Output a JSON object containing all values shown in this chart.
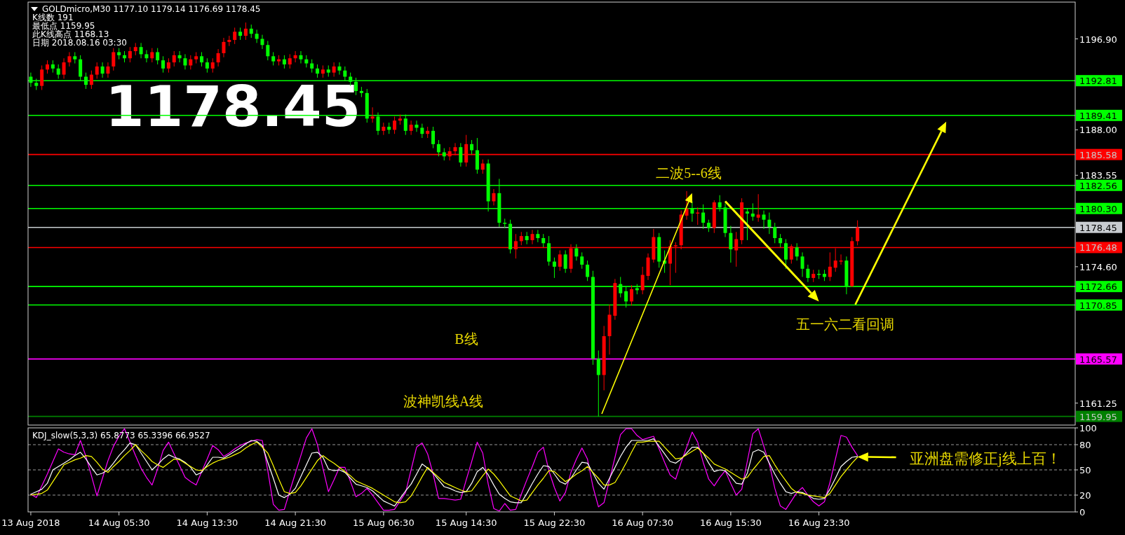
{
  "chart_data": [
    {
      "type": "candlestick",
      "title": "GOLDmicro,M30 1177.10 1179.14 1176.69 1178.45",
      "tick_labels": "y",
      "ylim": [
        1159.1,
        1200.5
      ],
      "yticks": [
        {
          "value": 1196.9,
          "label": "1196.90"
        },
        {
          "value": 1188,
          "label": "1188.00"
        },
        {
          "value": 1183.55,
          "label": "1183.55"
        },
        {
          "value": 1174.6,
          "label": "1174.60"
        },
        {
          "value": 1161.25,
          "label": "1161.25"
        }
      ],
      "ref_lines": [
        {
          "axis": "y",
          "value": 1192.81,
          "label": "1192.81",
          "color": "#00ff00"
        },
        {
          "axis": "y",
          "value": 1189.41,
          "label": "1189.41",
          "color": "#00ff00"
        },
        {
          "axis": "y",
          "value": 1185.58,
          "label": "1185.58",
          "color": "#ff0000"
        },
        {
          "axis": "y",
          "value": 1182.56,
          "label": "1182.56",
          "color": "#00ff00"
        },
        {
          "axis": "y",
          "value": 1180.3,
          "label": "1180.30",
          "color": "#00ff00"
        },
        {
          "axis": "y",
          "value": 1178.45,
          "label": "1178.45",
          "color": "#c8ccd0"
        },
        {
          "axis": "y",
          "value": 1176.48,
          "label": "1176.48",
          "color": "#ff0000"
        },
        {
          "axis": "y",
          "value": 1172.66,
          "label": "1172.66",
          "color": "#00ff00"
        },
        {
          "axis": "y",
          "value": 1170.85,
          "label": "1170.85",
          "color": "#00ff00"
        },
        {
          "axis": "y",
          "value": 1165.57,
          "label": "1165.57",
          "color": "#ff00ff"
        },
        {
          "axis": "y",
          "value": 1159.95,
          "label": "1159.95",
          "color": "#008000"
        }
      ],
      "annotations": [
        "K线数 191",
        "最低点 1159.95",
        "此K线高点 1168.13",
        "日期 2018.08.16 03:30",
        "1178.45",
        "二波5--6线",
        "B线",
        "波神凯线A线",
        "五一六二看回调"
      ],
      "categories": [
        null,
        null,
        null,
        null,
        null,
        null,
        null,
        null,
        null,
        null,
        null,
        null,
        null,
        null,
        null,
        null,
        null,
        null,
        null,
        null,
        null,
        null,
        null,
        null,
        null,
        null,
        null,
        null,
        null,
        null,
        null,
        null,
        null,
        null,
        null,
        null,
        null,
        null,
        null,
        null,
        null,
        null,
        null,
        null,
        null,
        null,
        null,
        null,
        null,
        null,
        null,
        null,
        null,
        null,
        null,
        null,
        null,
        null,
        null,
        null,
        null,
        null,
        null,
        null,
        null,
        null,
        null,
        null,
        null,
        null,
        null,
        null,
        null,
        null,
        null,
        null,
        null,
        null,
        null,
        null,
        null,
        null,
        null,
        null,
        null,
        null,
        null,
        null,
        null,
        null,
        null,
        null,
        null,
        null,
        null,
        null,
        null,
        null,
        null,
        null,
        null,
        null,
        null,
        null,
        null,
        null,
        null,
        null,
        null,
        null,
        null,
        null,
        null,
        null,
        null,
        null,
        null,
        null,
        null,
        null,
        null,
        null,
        null,
        null,
        null,
        null,
        null,
        null,
        null,
        null,
        null,
        null,
        null,
        null,
        null,
        null,
        null,
        null,
        null,
        null,
        null,
        null,
        null,
        null,
        null,
        null,
        null,
        null,
        null,
        null,
        null,
        null,
        null,
        null,
        null,
        null,
        null,
        null,
        null,
        null,
        null,
        null,
        null,
        null,
        null,
        null,
        null,
        null,
        null,
        null,
        null,
        null,
        null,
        null,
        null,
        null,
        null,
        null,
        null,
        null,
        null,
        null,
        null,
        null,
        null,
        null,
        null,
        null,
        null,
        null
      ],
      "ohlc": [
        [
          1193.2,
          1193.6,
          1192.2,
          1192.6
        ],
        [
          1192.6,
          1193.0,
          1191.9,
          1192.3
        ],
        [
          1192.3,
          1194.3,
          1191.9,
          1193.9
        ],
        [
          1193.9,
          1194.8,
          1193.5,
          1194.4
        ],
        [
          1194.4,
          1194.8,
          1193.6,
          1194.0
        ],
        [
          1194.0,
          1194.4,
          1193.0,
          1193.4
        ],
        [
          1193.4,
          1195.0,
          1193.0,
          1194.6
        ],
        [
          1194.6,
          1195.6,
          1194.2,
          1195.2
        ],
        [
          1195.2,
          1195.6,
          1194.5,
          1194.9
        ],
        [
          1194.9,
          1195.3,
          1192.8,
          1193.2
        ],
        [
          1193.2,
          1193.6,
          1192.0,
          1192.4
        ],
        [
          1192.4,
          1193.8,
          1192.0,
          1193.4
        ],
        [
          1193.4,
          1194.6,
          1193.0,
          1194.2
        ],
        [
          1194.2,
          1194.6,
          1193.1,
          1193.5
        ],
        [
          1193.5,
          1194.6,
          1193.1,
          1194.2
        ],
        [
          1194.2,
          1196.0,
          1193.8,
          1195.6
        ],
        [
          1195.6,
          1196.0,
          1194.9,
          1195.3
        ],
        [
          1195.3,
          1195.7,
          1194.6,
          1195.0
        ],
        [
          1195.0,
          1196.1,
          1194.6,
          1195.7
        ],
        [
          1195.7,
          1196.5,
          1195.3,
          1196.1
        ],
        [
          1196.1,
          1196.5,
          1195.0,
          1195.4
        ],
        [
          1195.4,
          1195.8,
          1194.6,
          1195.0
        ],
        [
          1195.0,
          1196.0,
          1194.6,
          1195.6
        ],
        [
          1195.6,
          1196.0,
          1194.4,
          1194.8
        ],
        [
          1194.8,
          1195.2,
          1193.6,
          1194.0
        ],
        [
          1194.0,
          1195.0,
          1193.6,
          1194.6
        ],
        [
          1194.6,
          1195.7,
          1194.2,
          1195.3
        ],
        [
          1195.3,
          1195.7,
          1194.6,
          1195.0
        ],
        [
          1195.0,
          1195.4,
          1193.9,
          1194.3
        ],
        [
          1194.3,
          1195.3,
          1193.9,
          1194.9
        ],
        [
          1194.9,
          1195.6,
          1194.5,
          1195.2
        ],
        [
          1195.2,
          1195.6,
          1194.2,
          1194.6
        ],
        [
          1194.6,
          1195.0,
          1193.6,
          1194.0
        ],
        [
          1194.0,
          1195.0,
          1193.6,
          1194.6
        ],
        [
          1194.6,
          1195.9,
          1194.2,
          1195.5
        ],
        [
          1195.5,
          1197.0,
          1195.1,
          1196.6
        ],
        [
          1196.6,
          1197.2,
          1196.2,
          1196.8
        ],
        [
          1196.8,
          1198.0,
          1196.4,
          1197.6
        ],
        [
          1197.6,
          1198.0,
          1196.8,
          1197.2
        ],
        [
          1197.2,
          1198.5,
          1196.8,
          1197.9
        ],
        [
          1197.9,
          1198.3,
          1197.0,
          1197.4
        ],
        [
          1197.4,
          1197.8,
          1196.5,
          1196.9
        ],
        [
          1196.9,
          1197.3,
          1195.9,
          1196.3
        ],
        [
          1196.3,
          1196.7,
          1194.8,
          1195.2
        ],
        [
          1195.2,
          1195.6,
          1194.3,
          1194.7
        ],
        [
          1194.7,
          1195.3,
          1194.3,
          1194.9
        ],
        [
          1194.9,
          1195.3,
          1194.0,
          1194.4
        ],
        [
          1194.4,
          1195.4,
          1194.0,
          1195.0
        ],
        [
          1195.0,
          1195.7,
          1194.6,
          1195.3
        ],
        [
          1195.3,
          1195.7,
          1194.5,
          1194.9
        ],
        [
          1194.9,
          1195.3,
          1194.1,
          1194.5
        ],
        [
          1194.5,
          1194.9,
          1193.6,
          1194.0
        ],
        [
          1194.0,
          1194.4,
          1193.1,
          1193.5
        ],
        [
          1193.5,
          1194.3,
          1193.1,
          1193.9
        ],
        [
          1193.9,
          1194.3,
          1193.2,
          1193.6
        ],
        [
          1193.6,
          1194.6,
          1193.2,
          1194.2
        ],
        [
          1194.2,
          1194.6,
          1193.4,
          1193.8
        ],
        [
          1193.8,
          1194.2,
          1192.8,
          1193.2
        ],
        [
          1193.2,
          1193.6,
          1192.3,
          1192.7
        ],
        [
          1192.7,
          1193.1,
          1191.4,
          1191.8
        ],
        [
          1191.8,
          1192.2,
          1191.2,
          1191.6
        ],
        [
          1191.6,
          1192.0,
          1188.7,
          1189.1
        ],
        [
          1189.1,
          1190.2,
          1188.7,
          1189.3
        ],
        [
          1189.3,
          1189.7,
          1187.5,
          1187.9
        ],
        [
          1187.9,
          1188.7,
          1187.5,
          1188.3
        ],
        [
          1188.3,
          1188.7,
          1187.6,
          1188.0
        ],
        [
          1188.0,
          1189.3,
          1187.6,
          1188.9
        ],
        [
          1188.9,
          1189.5,
          1188.5,
          1189.1
        ],
        [
          1189.1,
          1189.5,
          1187.5,
          1187.9
        ],
        [
          1187.9,
          1188.9,
          1187.5,
          1188.5
        ],
        [
          1188.5,
          1188.9,
          1187.8,
          1188.2
        ],
        [
          1188.2,
          1188.6,
          1187.2,
          1187.6
        ],
        [
          1187.6,
          1188.3,
          1187.2,
          1187.9
        ],
        [
          1187.9,
          1188.3,
          1186.2,
          1186.6
        ],
        [
          1186.6,
          1187.0,
          1185.4,
          1185.8
        ],
        [
          1185.8,
          1186.2,
          1185.0,
          1185.4
        ],
        [
          1185.4,
          1186.3,
          1185.0,
          1185.9
        ],
        [
          1185.9,
          1186.7,
          1185.5,
          1186.3
        ],
        [
          1186.3,
          1186.7,
          1184.4,
          1184.8
        ],
        [
          1184.8,
          1187.5,
          1184.4,
          1186.6
        ],
        [
          1186.6,
          1187.0,
          1185.6,
          1186.0
        ],
        [
          1186.0,
          1187.2,
          1183.7,
          1184.1
        ],
        [
          1184.1,
          1185.1,
          1183.7,
          1184.7
        ],
        [
          1184.7,
          1185.1,
          1180.0,
          1181.0
        ],
        [
          1181.0,
          1182.2,
          1180.6,
          1181.8
        ],
        [
          1181.8,
          1183.2,
          1178.5,
          1178.9
        ],
        [
          1178.9,
          1179.3,
          1178.4,
          1178.8
        ],
        [
          1178.8,
          1179.2,
          1175.9,
          1176.3
        ],
        [
          1176.3,
          1177.8,
          1175.4,
          1177.1
        ],
        [
          1177.1,
          1178.0,
          1176.7,
          1177.6
        ],
        [
          1177.6,
          1178.0,
          1176.8,
          1177.2
        ],
        [
          1177.2,
          1178.2,
          1176.8,
          1177.8
        ],
        [
          1177.8,
          1178.2,
          1177.0,
          1177.4
        ],
        [
          1177.4,
          1177.8,
          1176.5,
          1176.9
        ],
        [
          1176.9,
          1177.6,
          1174.7,
          1175.1
        ],
        [
          1175.1,
          1175.5,
          1173.5,
          1174.6
        ],
        [
          1174.6,
          1176.2,
          1174.2,
          1175.8
        ],
        [
          1175.8,
          1176.2,
          1174.0,
          1174.4
        ],
        [
          1174.4,
          1176.8,
          1174.0,
          1176.4
        ],
        [
          1176.4,
          1176.8,
          1175.2,
          1175.6
        ],
        [
          1175.6,
          1176.0,
          1174.4,
          1174.8
        ],
        [
          1174.8,
          1175.2,
          1173.2,
          1173.6
        ],
        [
          1173.6,
          1174.2,
          1165.0,
          1165.6
        ],
        [
          1165.6,
          1166.4,
          1159.95,
          1164.0
        ],
        [
          1164.0,
          1168.8,
          1162.5,
          1167.8
        ],
        [
          1167.8,
          1170.9,
          1166.0,
          1169.9
        ],
        [
          1169.8,
          1173.4,
          1169.4,
          1173.0
        ],
        [
          1172.9,
          1173.6,
          1171.6,
          1172.0
        ],
        [
          1172.2,
          1172.6,
          1170.6,
          1171.2
        ],
        [
          1171.2,
          1172.8,
          1170.8,
          1172.4
        ],
        [
          1172.5,
          1172.9,
          1171.9,
          1172.3
        ],
        [
          1172.3,
          1174.6,
          1171.9,
          1173.8
        ],
        [
          1173.7,
          1175.9,
          1173.3,
          1175.5
        ],
        [
          1175.3,
          1178.3,
          1175.0,
          1177.5
        ],
        [
          1177.5,
          1177.9,
          1174.5,
          1175.1
        ],
        [
          1175.2,
          1176.2,
          1174.0,
          1174.9
        ],
        [
          1174.9,
          1177.2,
          1172.8,
          1176.6
        ],
        [
          1176.6,
          1177.0,
          1174.0,
          1176.7
        ],
        [
          1176.7,
          1180.1,
          1176.3,
          1179.7
        ],
        [
          1179.6,
          1182.0,
          1179.2,
          1180.3
        ],
        [
          1180.3,
          1181.0,
          1179.0,
          1179.8
        ],
        [
          1179.8,
          1180.4,
          1178.7,
          1179.9
        ],
        [
          1179.9,
          1180.7,
          1178.3,
          1178.9
        ],
        [
          1178.9,
          1179.2,
          1178.0,
          1178.4
        ],
        [
          1178.4,
          1181.1,
          1177.9,
          1180.9
        ],
        [
          1180.9,
          1181.6,
          1180.0,
          1180.4
        ],
        [
          1180.4,
          1180.8,
          1177.5,
          1177.9
        ],
        [
          1177.9,
          1178.6,
          1175.0,
          1176.3
        ],
        [
          1176.2,
          1178.0,
          1174.6,
          1177.3
        ],
        [
          1177.2,
          1181.3,
          1176.8,
          1180.9
        ],
        [
          1180.0,
          1180.3,
          1177.2,
          1179.8
        ],
        [
          1179.8,
          1180.8,
          1179.1,
          1179.5
        ],
        [
          1179.4,
          1181.7,
          1179.0,
          1179.7
        ],
        [
          1179.7,
          1180.1,
          1178.3,
          1179.2
        ],
        [
          1179.2,
          1179.9,
          1177.8,
          1178.5
        ],
        [
          1178.5,
          1178.9,
          1176.9,
          1177.4
        ],
        [
          1177.4,
          1177.8,
          1176.5,
          1176.9
        ],
        [
          1176.9,
          1177.3,
          1174.4,
          1175.3
        ],
        [
          1175.3,
          1176.8,
          1174.9,
          1176.6
        ],
        [
          1176.5,
          1176.9,
          1175.2,
          1175.6
        ],
        [
          1175.6,
          1176.0,
          1173.6,
          1174.4
        ],
        [
          1174.4,
          1174.8,
          1173.1,
          1173.5
        ],
        [
          1173.5,
          1174.3,
          1173.1,
          1173.9
        ],
        [
          1173.9,
          1174.3,
          1173.4,
          1173.8
        ],
        [
          1173.9,
          1174.3,
          1173.2,
          1173.6
        ],
        [
          1173.6,
          1176.0,
          1173.2,
          1174.6
        ],
        [
          1174.5,
          1176.4,
          1174.1,
          1175.2
        ],
        [
          1175.1,
          1175.8,
          1174.8,
          1175.2
        ],
        [
          1175.2,
          1175.6,
          1171.9,
          1172.7
        ],
        [
          1172.7,
          1177.5,
          1172.6,
          1177.1
        ],
        [
          1177.1,
          1179.14,
          1176.69,
          1178.45
        ],
        null,
        null,
        null,
        null,
        null,
        null,
        null,
        null,
        null,
        null,
        null,
        null,
        null,
        null,
        null,
        null,
        null,
        null,
        null,
        null,
        null,
        null,
        null,
        null,
        null,
        null,
        null,
        null,
        null,
        null,
        null,
        null,
        null,
        null,
        null,
        null,
        null,
        null,
        null
      ],
      "colors": [
        "#00ff00",
        "#00ff00",
        "#ff0000",
        "#ff0000",
        "#00ff00",
        "#00ff00",
        "#ff0000",
        "#ff0000",
        "#00ff00",
        "#00ff00",
        "#00ff00",
        "#ff0000",
        "#ff0000",
        "#00ff00",
        "#ff0000",
        "#ff0000",
        "#00ff00",
        "#00ff00",
        "#ff0000",
        "#ff0000",
        "#00ff00",
        "#00ff00",
        "#ff0000",
        "#00ff00",
        "#00ff00",
        "#ff0000",
        "#ff0000",
        "#00ff00",
        "#00ff00",
        "#ff0000",
        "#ff0000",
        "#00ff00",
        "#00ff00",
        "#ff0000",
        "#ff0000",
        "#ff0000",
        "#ff0000",
        "#ff0000",
        "#00ff00",
        "#ff0000",
        "#00ff00",
        "#00ff00",
        "#00ff00",
        "#00ff00",
        "#00ff00",
        "#ff0000",
        "#00ff00",
        "#ff0000",
        "#ff0000",
        "#00ff00",
        "#00ff00",
        "#00ff00",
        "#00ff00",
        "#ff0000",
        "#00ff00",
        "#ff0000",
        "#00ff00",
        "#00ff00",
        "#00ff00",
        "#00ff00",
        "#00ff00",
        "#00ff00",
        "#ff0000",
        "#00ff00",
        "#ff0000",
        "#00ff00",
        "#ff0000",
        "#ff0000",
        "#00ff00",
        "#ff0000",
        "#00ff00",
        "#00ff00",
        "#ff0000",
        "#00ff00",
        "#00ff00",
        "#00ff00",
        "#ff0000",
        "#ff0000",
        "#00ff00",
        "#ff0000",
        "#00ff00",
        "#00ff00",
        "#ff0000",
        "#00ff00",
        "#ff0000",
        "#00ff00",
        "#00ff00",
        "#00ff00",
        "#ff0000",
        "#ff0000",
        "#00ff00",
        "#ff0000",
        "#00ff00",
        "#00ff00",
        "#00ff00",
        "#00ff00",
        "#ff0000",
        "#00ff00",
        "#ff0000",
        "#00ff00",
        "#00ff00",
        "#00ff00",
        "#00ff00",
        "#00ff00",
        "#ff0000",
        "#ff0000",
        "#ff0000",
        "#00ff00",
        "#00ff00",
        "#ff0000",
        "#00ff00",
        "#ff0000",
        "#ff0000",
        "#ff0000",
        "#00ff00",
        "#00ff00",
        "#ff0000",
        "#ff0000",
        "#ff0000",
        "#ff0000",
        "#00ff00",
        "#ff0000",
        "#00ff00",
        "#00ff00",
        "#ff0000",
        "#00ff00",
        "#00ff00",
        "#00ff00",
        "#ff0000",
        "#ff0000",
        "#00ff00",
        "#00ff00",
        "#ff0000",
        "#00ff00",
        "#00ff00",
        "#00ff00",
        "#00ff00",
        "#00ff00",
        "#ff0000",
        "#00ff00",
        "#00ff00",
        "#00ff00",
        "#ff0000",
        "#00ff00",
        "#00ff00",
        "#ff0000",
        "#ff0000",
        "#ff0000",
        "#00ff00",
        "#ff0000",
        "#ff0000",
        null,
        null,
        null,
        null,
        null,
        null,
        null,
        null,
        null,
        null,
        null,
        null,
        null,
        null,
        null,
        null,
        null,
        null,
        null,
        null,
        null,
        null,
        null,
        null,
        null,
        null,
        null,
        null,
        null,
        null,
        null,
        null,
        null,
        null,
        null,
        null,
        null,
        null,
        null
      ]
    },
    {
      "type": "line",
      "ylim": [
        0,
        100
      ],
      "yticks": [
        100,
        80,
        50,
        20,
        0
      ],
      "categories": [
        "13 Aug 2018",
        null,
        null,
        null,
        null,
        null,
        null,
        null,
        null,
        null,
        null,
        null,
        null,
        null,
        null,
        null,
        "14 Aug 05:30",
        null,
        null,
        null,
        null,
        null,
        null,
        null,
        null,
        null,
        null,
        null,
        null,
        null,
        null,
        null,
        "14 Aug 13:30",
        null,
        null,
        null,
        null,
        null,
        null,
        null,
        null,
        null,
        null,
        null,
        null,
        null,
        null,
        null,
        "14 Aug 21:30",
        null,
        null,
        null,
        null,
        null,
        null,
        null,
        null,
        null,
        null,
        null,
        null,
        null,
        null,
        null,
        "15 Aug 06:30",
        null,
        null,
        null,
        null,
        null,
        null,
        null,
        null,
        null,
        null,
        null,
        null,
        null,
        null,
        "15 Aug 14:30",
        null,
        null,
        null,
        null,
        null,
        null,
        null,
        null,
        null,
        null,
        null,
        null,
        null,
        null,
        null,
        "15 Aug 22:30",
        null,
        null,
        null,
        null,
        null,
        null,
        null,
        null,
        null,
        null,
        null,
        null,
        null,
        null,
        null,
        "16 Aug 07:30",
        null,
        null,
        null,
        null,
        null,
        null,
        null,
        null,
        null,
        null,
        null,
        null,
        null,
        null,
        null,
        "16 Aug 15:30",
        null,
        null,
        null,
        null,
        null,
        null,
        null,
        null,
        null,
        null,
        null,
        null,
        null,
        null,
        null,
        "16 Aug 23:30",
        null,
        null,
        null,
        null,
        null,
        null,
        null,
        null,
        null,
        null,
        null,
        null,
        null,
        null,
        null,
        null,
        null,
        null,
        null,
        null,
        null,
        null,
        null,
        null,
        null,
        null,
        null,
        null,
        null,
        null,
        null,
        null,
        null,
        null,
        null,
        null,
        null,
        null,
        null,
        null,
        null,
        null,
        null,
        null,
        null,
        null
      ],
      "ref_lines": [
        {
          "axis": "y",
          "value": 80,
          "color": "#c0c0c0",
          "line_style": "dashed"
        },
        {
          "axis": "y",
          "value": 50,
          "color": "#c0c0c0",
          "line_style": "dashed"
        },
        {
          "axis": "y",
          "value": 20,
          "color": "#c0c0c0",
          "line_style": "dashed"
        }
      ],
      "annotations": [
        "KDJ_slow(5,3,3) 65.8773 65.3396 66.9527",
        "亚洲盘需修正j线上百！"
      ],
      "series": [
        {
          "color": "#ff00ff",
          "values": [
            21,
            17,
            31,
            45,
            60,
            75,
            71,
            69,
            68,
            85,
            66,
            43,
            19,
            40,
            61,
            78,
            90,
            99,
            83,
            67,
            52,
            41,
            32,
            51,
            73,
            83,
            69,
            55,
            41,
            36,
            32,
            48,
            63,
            79,
            74,
            66,
            70,
            75,
            79,
            82,
            84,
            86,
            85,
            49,
            9,
            2,
            3,
            25,
            46,
            67,
            88,
            99,
            80,
            52,
            24,
            38,
            53,
            53,
            36,
            18,
            22,
            28,
            20,
            11,
            2,
            2,
            3,
            13,
            23,
            50,
            77,
            82,
            69,
            45,
            16,
            16,
            15,
            14,
            15,
            38,
            60,
            83,
            70,
            33,
            4,
            1,
            10,
            2,
            3,
            21,
            38,
            54,
            71,
            77,
            49,
            29,
            13,
            23,
            47,
            63,
            76,
            63,
            30,
            6,
            11,
            38,
            65,
            92,
            99,
            99,
            91,
            86,
            88,
            90,
            75,
            59,
            44,
            39,
            59,
            77,
            95,
            83,
            59,
            39,
            31,
            41,
            49,
            34,
            20,
            27,
            60,
            93,
            99,
            78,
            57,
            28,
            7,
            3,
            13,
            23,
            29,
            20,
            12,
            7,
            12,
            35,
            63,
            91,
            89,
            77,
            67,
            null,
            null,
            null,
            null,
            null,
            null,
            null,
            null,
            null,
            null,
            null,
            null,
            null,
            null,
            null,
            null,
            null,
            null,
            null,
            null,
            null,
            null,
            null,
            null,
            null,
            null,
            null,
            null,
            null,
            null,
            null,
            null,
            null,
            null,
            null,
            null,
            null,
            null,
            null
          ]
        },
        {
          "color": "#ffffff",
          "values": [
            21,
            24,
            27,
            34,
            50,
            54,
            58,
            62,
            67,
            71,
            63,
            53,
            44,
            46,
            50,
            58,
            67,
            74,
            82,
            80,
            70,
            60,
            50,
            56,
            63,
            68,
            65,
            63,
            59,
            53,
            44,
            47,
            56,
            65,
            65,
            64,
            68,
            72,
            76,
            81,
            85,
            84,
            79,
            59,
            40,
            20,
            17,
            21,
            28,
            42,
            56,
            70,
            71,
            65,
            51,
            49,
            50,
            47,
            40,
            33,
            31,
            29,
            25,
            19,
            13,
            10,
            7,
            16,
            25,
            33,
            45,
            57,
            52,
            46,
            38,
            30,
            28,
            25,
            23,
            24,
            34,
            48,
            53,
            44,
            32,
            21,
            16,
            12,
            11,
            11,
            22,
            34,
            45,
            55,
            54,
            45,
            36,
            33,
            40,
            50,
            59,
            58,
            46,
            34,
            27,
            40,
            53,
            66,
            77,
            85,
            85,
            85,
            85,
            87,
            78,
            69,
            60,
            58,
            63,
            70,
            77,
            77,
            70,
            58,
            48,
            50,
            49,
            42,
            34,
            33,
            46,
            71,
            74,
            71,
            58,
            45,
            34,
            24,
            22,
            24,
            23,
            20,
            16,
            15,
            16,
            27,
            40,
            54,
            60,
            65,
            66,
            null,
            null,
            null,
            null,
            null,
            null,
            null,
            null,
            null,
            null,
            null,
            null,
            null,
            null,
            null,
            null,
            null,
            null,
            null,
            null,
            null,
            null,
            null,
            null,
            null,
            null,
            null,
            null,
            null,
            null,
            null,
            null,
            null,
            null,
            null,
            null,
            null,
            null,
            null
          ]
        },
        {
          "color": "#ffff00",
          "values": [
            20,
            21,
            22,
            26,
            36,
            46,
            56,
            59,
            62,
            64,
            67,
            66,
            59,
            51,
            47,
            54,
            60,
            67,
            73,
            80,
            73,
            67,
            60,
            56,
            53,
            58,
            63,
            62,
            58,
            54,
            50,
            49,
            54,
            58,
            61,
            63,
            65,
            68,
            71,
            76,
            80,
            83,
            77,
            70,
            55,
            39,
            24,
            22,
            23,
            31,
            41,
            51,
            61,
            67,
            62,
            58,
            53,
            48,
            43,
            37,
            34,
            31,
            28,
            24,
            20,
            16,
            12,
            11,
            12,
            19,
            30,
            42,
            53,
            47,
            41,
            35,
            32,
            29,
            26,
            24,
            25,
            34,
            43,
            51,
            45,
            37,
            28,
            19,
            16,
            13,
            14,
            23,
            32,
            40,
            49,
            48,
            42,
            36,
            40,
            45,
            49,
            54,
            47,
            40,
            32,
            32,
            35,
            46,
            58,
            71,
            83,
            83,
            84,
            84,
            84,
            77,
            70,
            63,
            64,
            68,
            72,
            76,
            70,
            64,
            57,
            54,
            51,
            47,
            43,
            39,
            41,
            50,
            58,
            66,
            67,
            56,
            46,
            37,
            28,
            23,
            22,
            20,
            19,
            18,
            17,
            22,
            32,
            42,
            50,
            58,
            65,
            null,
            null,
            null,
            null,
            null,
            null,
            null,
            null,
            null,
            null,
            null,
            null,
            null,
            null,
            null,
            null,
            null,
            null,
            null,
            null,
            null,
            null,
            null,
            null,
            null,
            null,
            null,
            null,
            null,
            null,
            null,
            null,
            null,
            null,
            null,
            null,
            null,
            null,
            null
          ]
        }
      ]
    }
  ]
}
